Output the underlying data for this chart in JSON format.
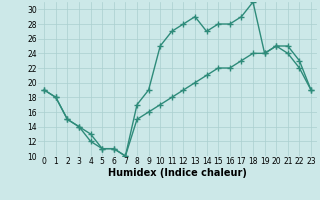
{
  "xlabel": "Humidex (Indice chaleur)",
  "x_values": [
    0,
    1,
    2,
    3,
    4,
    5,
    6,
    7,
    8,
    9,
    10,
    11,
    12,
    13,
    14,
    15,
    16,
    17,
    18,
    19,
    20,
    21,
    22,
    23
  ],
  "line1_y": [
    19,
    18,
    15,
    14,
    12,
    11,
    11,
    10,
    17,
    19,
    25,
    27,
    28,
    29,
    27,
    28,
    28,
    29,
    31,
    24,
    25,
    24,
    22,
    19
  ],
  "line2_y": [
    19,
    18,
    15,
    14,
    13,
    11,
    11,
    10,
    15,
    16,
    17,
    18,
    19,
    20,
    21,
    22,
    22,
    23,
    24,
    24,
    25,
    25,
    23,
    19
  ],
  "line_color": "#2e8b7a",
  "bg_color": "#cce8e8",
  "grid_color": "#aacfcf",
  "ylim": [
    10,
    31
  ],
  "yticks": [
    10,
    12,
    14,
    16,
    18,
    20,
    22,
    24,
    26,
    28,
    30
  ],
  "xticks": [
    0,
    1,
    2,
    3,
    4,
    5,
    6,
    7,
    8,
    9,
    10,
    11,
    12,
    13,
    14,
    15,
    16,
    17,
    18,
    19,
    20,
    21,
    22,
    23
  ],
  "marker": "+",
  "markersize": 4,
  "linewidth": 1.0,
  "tick_fontsize": 5.5,
  "xlabel_fontsize": 7
}
